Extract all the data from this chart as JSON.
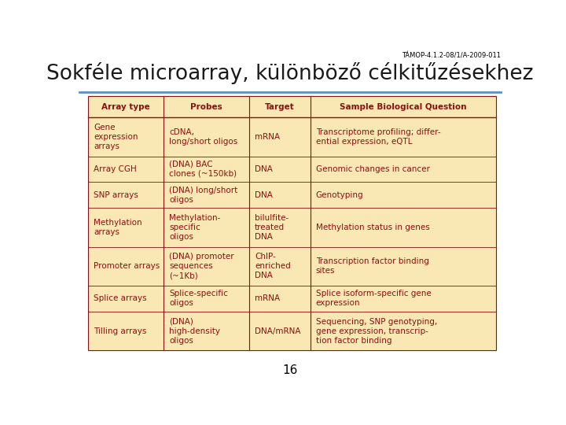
{
  "title": "Sokféle microarray, különböző célkitűzésekhez",
  "subtitle": "TÁMOP-4.1.2-08/1/A-2009-011",
  "title_color": "#1a1a1a",
  "subtitle_color": "#000000",
  "page_number": "16",
  "background_color": "#FFFFFF",
  "table_bg_color": "#FAE8B4",
  "header_text_color": "#8B1010",
  "cell_text_color": "#8B1010",
  "line_color": "#8B1010",
  "header_line_color": "#5B8FC9",
  "headers": [
    "Array type",
    "Probes",
    "Target",
    "Sample Biological Question"
  ],
  "col_divs": [
    0.0,
    0.185,
    0.395,
    0.545,
    1.0
  ],
  "row_line_counts": [
    3,
    2,
    2,
    3,
    3,
    2,
    3
  ],
  "rows": [
    {
      "col0": "Gene\nexpression\narrays",
      "col1": "cDNA,\nlong/short oligos",
      "col2": "mRNA",
      "col3": "Transcriptome profiling; differ-\nential expression, eQTL"
    },
    {
      "col0": "Array CGH",
      "col1": "(DNA) BAC\nclones (~150kb)",
      "col2": "DNA",
      "col3": "Genomic changes in cancer"
    },
    {
      "col0": "SNP arrays",
      "col1": "(DNA) long/short\noligos",
      "col2": "DNA",
      "col3": "Genotyping"
    },
    {
      "col0": "Methylation\narrays",
      "col1": "Methylation-\nspecific\noligos",
      "col2": "bilulfite-\ntreated\nDNA",
      "col3": "Methylation status in genes"
    },
    {
      "col0": "Promoter arrays",
      "col1": "(DNA) promoter\nsequences\n(~1Kb)",
      "col2": "ChIP-\nenriched\nDNA",
      "col3": "Transcription factor binding\nsites"
    },
    {
      "col0": "Splice arrays",
      "col1": "Splice-specific\noligos",
      "col2": "mRNA",
      "col3": "Splice isoform-specific gene\nexpression"
    },
    {
      "col0": "Tilling arrays",
      "col1": "(DNA)\nhigh-density\noligos",
      "col2": "DNA/mRNA",
      "col3": "Sequencing, SNP genotyping,\ngene expression, transcrip-\ntion factor binding"
    }
  ]
}
